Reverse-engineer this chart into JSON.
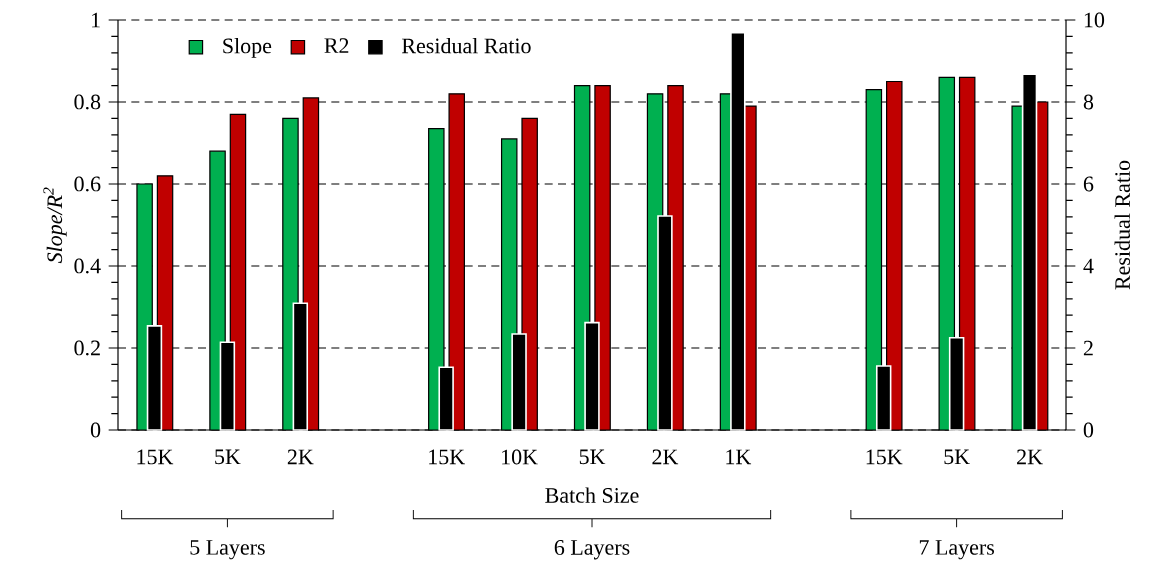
{
  "chart_data": {
    "type": "bar",
    "categories": [
      "15K",
      "5K",
      "2K",
      null,
      "15K",
      "10K",
      "5K",
      "2K",
      "1K",
      null,
      "15K",
      "5K",
      "2K"
    ],
    "series": [
      {
        "name": "Slope",
        "color": "#00b050",
        "values": [
          0.6,
          0.68,
          0.76,
          null,
          0.735,
          0.71,
          0.84,
          0.82,
          0.82,
          null,
          0.83,
          0.86,
          0.79
        ]
      },
      {
        "name": "R2",
        "color": "#c00000",
        "values": [
          0.62,
          0.77,
          0.81,
          null,
          0.82,
          0.76,
          0.84,
          0.84,
          0.79,
          null,
          0.85,
          0.86,
          0.8
        ]
      },
      {
        "name": "Residual Ratio",
        "color": "#000000",
        "axis": "y2",
        "values": [
          2.54,
          2.14,
          3.09,
          null,
          1.53,
          2.34,
          2.62,
          5.22,
          9.69,
          null,
          1.56,
          2.25,
          8.68
        ]
      }
    ],
    "xlabel": "Batch Size",
    "ylabel": "Slope/R$^{2}$",
    "y2label": "Residual Ratio",
    "ylim": [
      0,
      1
    ],
    "yticks": [
      0,
      0.2,
      0.4,
      0.6,
      0.8,
      1
    ],
    "y2lim": [
      0,
      10
    ],
    "y2ticks": [
      0,
      2,
      4,
      6,
      8,
      10
    ],
    "grid": "y",
    "legend": "top left",
    "annotations": [
      "5 Layers",
      "6 Layers",
      "7 Layers"
    ]
  }
}
